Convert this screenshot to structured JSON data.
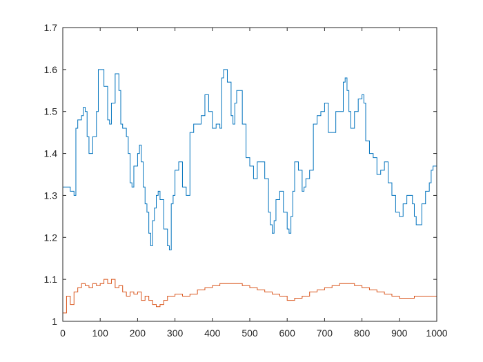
{
  "chart_data": {
    "type": "line",
    "title": "",
    "xlabel": "",
    "ylabel": "",
    "xlim": [
      0,
      1000
    ],
    "ylim": [
      1,
      1.7
    ],
    "xticks": [
      0,
      100,
      200,
      300,
      400,
      500,
      600,
      700,
      800,
      900,
      1000
    ],
    "yticks": [
      1,
      1.1,
      1.2,
      1.3,
      1.4,
      1.5,
      1.6,
      1.7
    ],
    "xtick_labels": [
      "0",
      "100",
      "200",
      "300",
      "400",
      "500",
      "600",
      "700",
      "800",
      "900",
      "1000"
    ],
    "ytick_labels": [
      "1",
      "1.1",
      "1.2",
      "1.3",
      "1.4",
      "1.5",
      "1.6",
      "1.7"
    ],
    "grid": false,
    "box": true,
    "series": [
      {
        "color": "#0072BD",
        "x": [
          0,
          10,
          20,
          30,
          35,
          40,
          50,
          55,
          60,
          65,
          70,
          80,
          90,
          95,
          100,
          110,
          120,
          125,
          130,
          140,
          150,
          155,
          160,
          170,
          175,
          180,
          185,
          190,
          200,
          205,
          210,
          215,
          220,
          225,
          230,
          235,
          240,
          245,
          250,
          255,
          260,
          270,
          280,
          285,
          290,
          295,
          300,
          310,
          320,
          330,
          340,
          350,
          360,
          370,
          380,
          390,
          400,
          410,
          420,
          425,
          430,
          440,
          450,
          455,
          460,
          465,
          470,
          480,
          490,
          500,
          510,
          520,
          530,
          540,
          550,
          555,
          560,
          565,
          570,
          580,
          590,
          600,
          605,
          610,
          615,
          620,
          630,
          640,
          645,
          650,
          660,
          670,
          680,
          690,
          700,
          710,
          720,
          730,
          740,
          750,
          755,
          760,
          765,
          770,
          780,
          790,
          800,
          805,
          810,
          820,
          830,
          840,
          850,
          860,
          870,
          880,
          890,
          900,
          910,
          920,
          930,
          935,
          940,
          945,
          950,
          960,
          970,
          980,
          985,
          990,
          1000
        ],
        "y": [
          1.32,
          1.32,
          1.31,
          1.3,
          1.46,
          1.48,
          1.49,
          1.51,
          1.5,
          1.44,
          1.4,
          1.44,
          1.5,
          1.6,
          1.6,
          1.56,
          1.48,
          1.47,
          1.52,
          1.59,
          1.55,
          1.47,
          1.46,
          1.44,
          1.4,
          1.33,
          1.32,
          1.37,
          1.4,
          1.42,
          1.38,
          1.32,
          1.28,
          1.26,
          1.21,
          1.18,
          1.24,
          1.27,
          1.3,
          1.31,
          1.29,
          1.22,
          1.18,
          1.17,
          1.28,
          1.3,
          1.36,
          1.38,
          1.32,
          1.3,
          1.45,
          1.47,
          1.47,
          1.49,
          1.54,
          1.5,
          1.46,
          1.47,
          1.46,
          1.58,
          1.6,
          1.57,
          1.49,
          1.47,
          1.52,
          1.55,
          1.55,
          1.47,
          1.39,
          1.37,
          1.34,
          1.38,
          1.38,
          1.34,
          1.26,
          1.23,
          1.21,
          1.24,
          1.29,
          1.31,
          1.26,
          1.22,
          1.21,
          1.25,
          1.31,
          1.38,
          1.36,
          1.31,
          1.32,
          1.34,
          1.36,
          1.47,
          1.49,
          1.5,
          1.52,
          1.45,
          1.45,
          1.5,
          1.5,
          1.57,
          1.58,
          1.55,
          1.5,
          1.46,
          1.5,
          1.53,
          1.54,
          1.52,
          1.43,
          1.4,
          1.39,
          1.35,
          1.36,
          1.38,
          1.33,
          1.3,
          1.26,
          1.25,
          1.28,
          1.3,
          1.3,
          1.28,
          1.25,
          1.23,
          1.23,
          1.28,
          1.31,
          1.33,
          1.36,
          1.37,
          1.34
        ]
      },
      {
        "color": "#D95319",
        "x": [
          0,
          10,
          20,
          30,
          40,
          50,
          60,
          70,
          80,
          90,
          100,
          110,
          120,
          130,
          140,
          150,
          160,
          170,
          180,
          190,
          200,
          210,
          220,
          230,
          240,
          250,
          260,
          270,
          280,
          290,
          300,
          320,
          340,
          360,
          380,
          400,
          420,
          440,
          460,
          480,
          500,
          520,
          540,
          560,
          580,
          600,
          620,
          640,
          660,
          680,
          700,
          720,
          740,
          760,
          780,
          800,
          820,
          840,
          860,
          880,
          900,
          920,
          940,
          960,
          980,
          1000
        ],
        "y": [
          1.02,
          1.06,
          1.04,
          1.07,
          1.08,
          1.09,
          1.085,
          1.08,
          1.09,
          1.085,
          1.09,
          1.1,
          1.09,
          1.1,
          1.08,
          1.085,
          1.07,
          1.06,
          1.07,
          1.065,
          1.07,
          1.05,
          1.06,
          1.05,
          1.04,
          1.035,
          1.04,
          1.05,
          1.06,
          1.06,
          1.065,
          1.06,
          1.065,
          1.075,
          1.08,
          1.085,
          1.09,
          1.09,
          1.09,
          1.085,
          1.08,
          1.075,
          1.07,
          1.065,
          1.06,
          1.05,
          1.055,
          1.06,
          1.07,
          1.075,
          1.08,
          1.085,
          1.09,
          1.09,
          1.085,
          1.08,
          1.075,
          1.07,
          1.065,
          1.06,
          1.055,
          1.055,
          1.06,
          1.06,
          1.06,
          1.065
        ]
      }
    ]
  }
}
